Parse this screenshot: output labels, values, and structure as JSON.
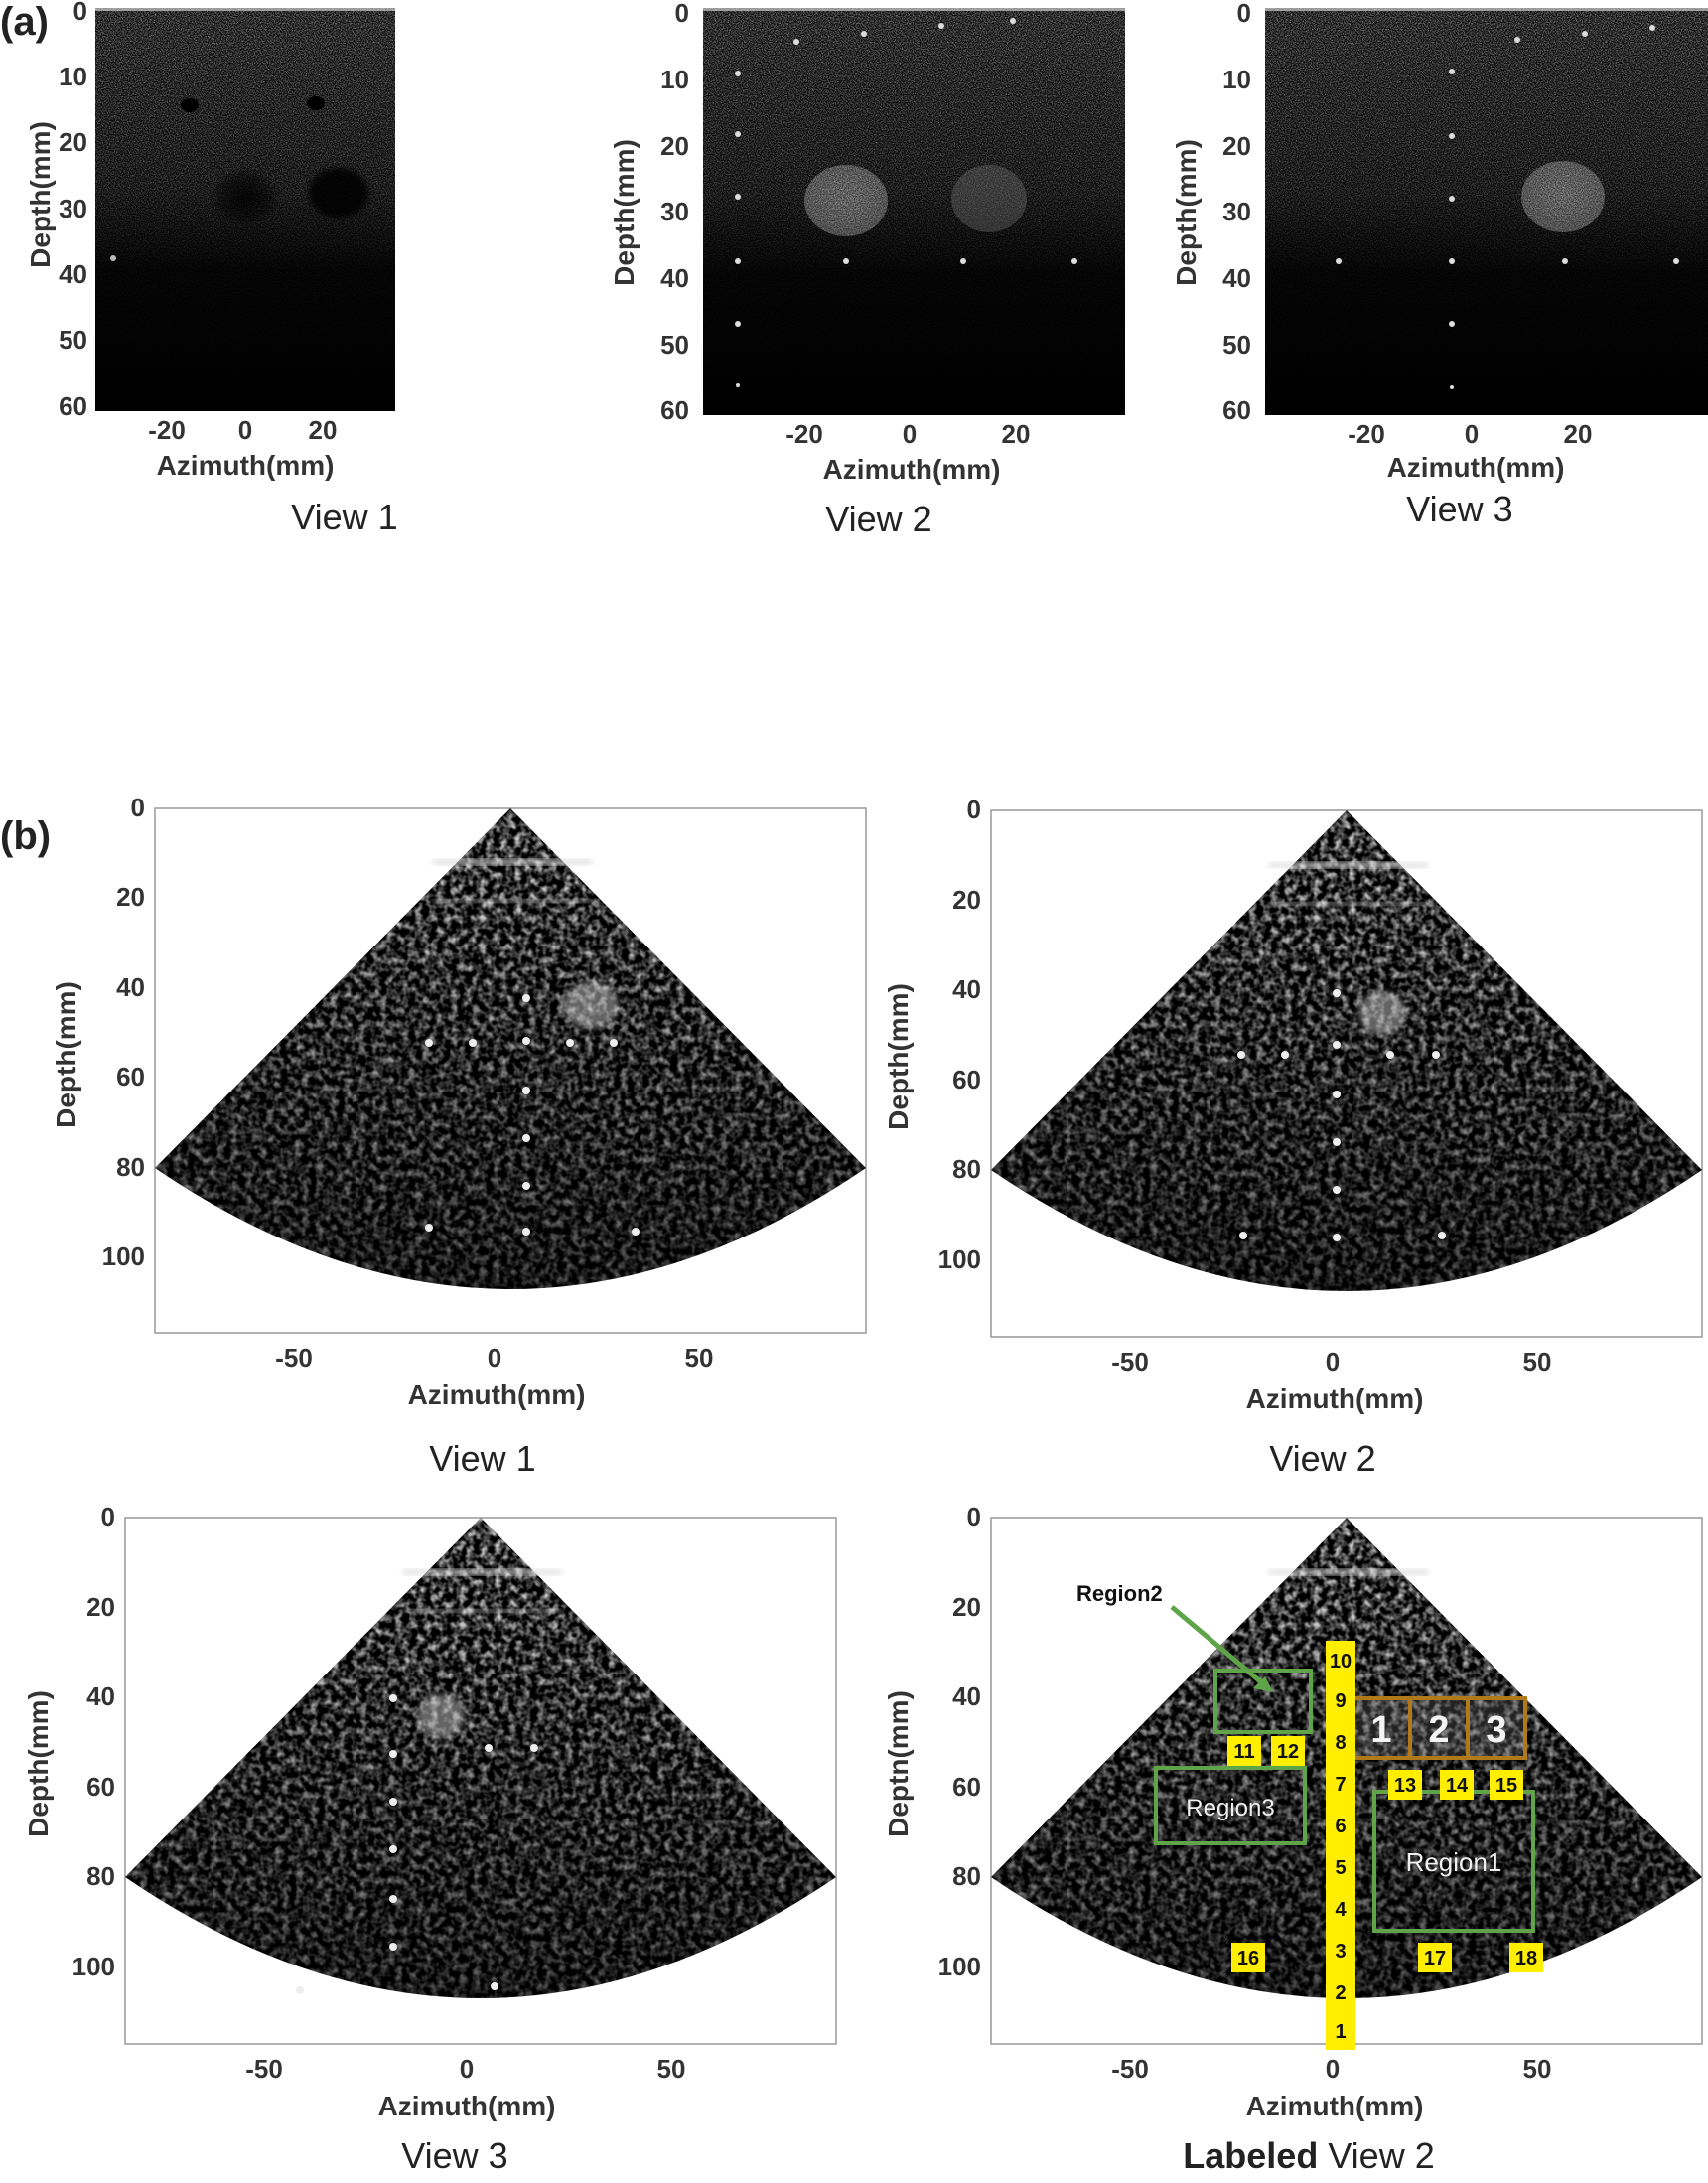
{
  "figure": {
    "panel_a_label": "(a)",
    "panel_b_label": "(b)"
  },
  "axis_text": {
    "depth_label": "Depth(mm)",
    "azimuth_label": "Azimuth(mm)"
  },
  "panel_a": {
    "views": [
      {
        "caption": "View 1",
        "depth_ticks": [
          "0",
          "10",
          "20",
          "30",
          "40",
          "50",
          "60"
        ],
        "azimuth_ticks": [
          "-20",
          "0",
          "20"
        ]
      },
      {
        "caption": "View 2",
        "depth_ticks": [
          "0",
          "10",
          "20",
          "30",
          "40",
          "50",
          "60"
        ],
        "azimuth_ticks": [
          "-20",
          "0",
          "20"
        ]
      },
      {
        "caption": "View 3",
        "depth_ticks": [
          "0",
          "10",
          "20",
          "30",
          "40",
          "50",
          "60"
        ],
        "azimuth_ticks": [
          "-20",
          "0",
          "20"
        ]
      }
    ]
  },
  "panel_b": {
    "views": [
      {
        "caption": "View 1",
        "depth_ticks": [
          "0",
          "20",
          "40",
          "60",
          "80",
          "100"
        ],
        "azimuth_ticks": [
          "-50",
          "0",
          "50"
        ]
      },
      {
        "caption": "View 2",
        "depth_ticks": [
          "0",
          "20",
          "40",
          "60",
          "80",
          "100"
        ],
        "azimuth_ticks": [
          "-50",
          "0",
          "50"
        ]
      },
      {
        "caption": "View 3",
        "depth_ticks": [
          "0",
          "20",
          "40",
          "60",
          "80",
          "100"
        ],
        "azimuth_ticks": [
          "-50",
          "0",
          "50"
        ]
      },
      {
        "caption_bold": "Labeled",
        "caption_rest": " View 2",
        "depth_ticks": [
          "0",
          "20",
          "40",
          "60",
          "80",
          "100"
        ],
        "azimuth_ticks": [
          "-50",
          "0",
          "50"
        ]
      }
    ],
    "labeled_depth_label": "Deptn(mm)",
    "annotations": {
      "region1": "Region1",
      "region2": "Region2",
      "region3": "Region3",
      "column_numbers": [
        "10",
        "9",
        "8",
        "7",
        "6",
        "5",
        "4",
        "3",
        "2",
        "1"
      ],
      "point_numbers": [
        "11",
        "12",
        "13",
        "14",
        "15",
        "16",
        "17",
        "18"
      ],
      "box_numbers": [
        "1",
        "2",
        "3"
      ]
    }
  },
  "colors": {
    "label_yellow": "#ffee00",
    "region_green": "#5fa448",
    "box_brown": "#b07a1a",
    "image_black": "#000000"
  }
}
